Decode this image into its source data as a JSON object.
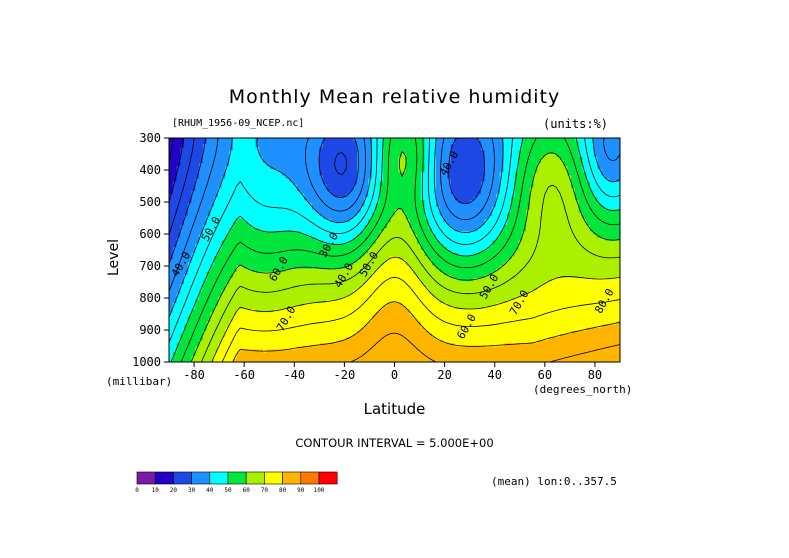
{
  "chart_data": {
    "type": "heatmap",
    "title": "Monthly Mean relative humidity",
    "dataset": "[RHUM_1956-09_NCEP.nc]",
    "units": "(units:%)",
    "xlabel": "Latitude",
    "x_units": "(degrees_north)",
    "ylabel": "Level",
    "y_units": "(millibar)",
    "x_ticks": [
      "-80",
      "-60",
      "-40",
      "-20",
      "0",
      "20",
      "40",
      "60",
      "80"
    ],
    "x_tick_values": [
      -80,
      -60,
      -40,
      -20,
      0,
      20,
      40,
      60,
      80
    ],
    "y_ticks": [
      "300",
      "400",
      "500",
      "600",
      "700",
      "800",
      "900",
      "1000"
    ],
    "y_tick_values": [
      300,
      400,
      500,
      600,
      700,
      800,
      900,
      1000
    ],
    "xlim": [
      -90,
      90
    ],
    "ylim": [
      1000,
      300
    ],
    "contour_interval_text": "CONTOUR INTERVAL = 5.000E+00",
    "subtitle": "(mean) lon:0..357.5",
    "colorbar": {
      "ticks": [
        "0",
        "10",
        "20",
        "30",
        "40",
        "50",
        "60",
        "70",
        "80",
        "90",
        "100"
      ],
      "colors": [
        "#7a1aa8",
        "#2200c8",
        "#1e48e6",
        "#1e90ff",
        "#00ffff",
        "#00e63c",
        "#aaf000",
        "#ffff00",
        "#ffb400",
        "#ff7800",
        "#ff0000"
      ]
    },
    "contour_labels": [
      {
        "text": "40.0",
        "lat": -84,
        "lev": 700
      },
      {
        "text": "50.0",
        "lat": -72,
        "lev": 590
      },
      {
        "text": "60.0",
        "lat": -45,
        "lev": 715
      },
      {
        "text": "70.0",
        "lat": -42,
        "lev": 870
      },
      {
        "text": "30.0",
        "lat": -25,
        "lev": 640
      },
      {
        "text": "40.0",
        "lat": -19,
        "lev": 735
      },
      {
        "text": "50.0",
        "lat": -9,
        "lev": 700
      },
      {
        "text": "40.0",
        "lat": 23,
        "lev": 385
      },
      {
        "text": "50.0",
        "lat": 39,
        "lev": 770
      },
      {
        "text": "60.0",
        "lat": 30,
        "lev": 895
      },
      {
        "text": "70.0",
        "lat": 51,
        "lev": 820
      },
      {
        "text": "80.0",
        "lat": 85,
        "lev": 815
      }
    ],
    "field_description": "mean relative humidity (%) cross-section; dry minima ~20-30% near 20S and 30N at 400-500 mb, moist (>80%) near surface in tropics and high latitudes"
  }
}
